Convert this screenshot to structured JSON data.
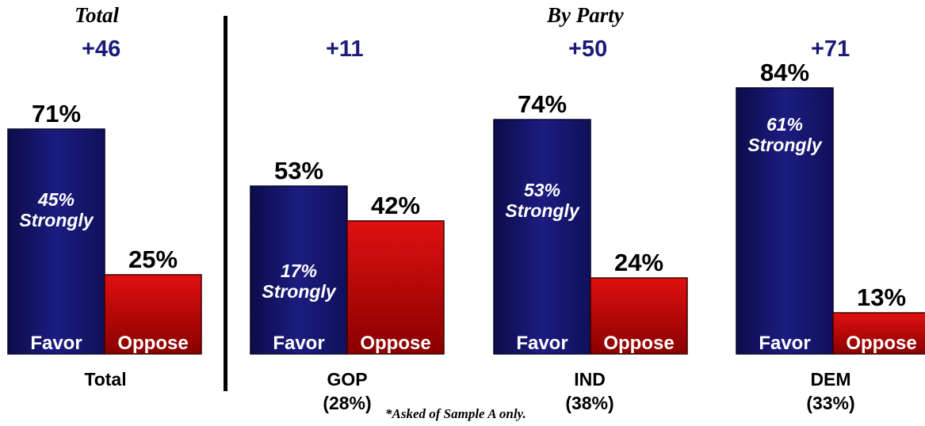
{
  "section_titles": {
    "total": "Total",
    "by_party": "By Party"
  },
  "footnote": "*Asked of Sample A only.",
  "colors": {
    "favor": "#1c1c80",
    "favor_dark": "#0c0c4a",
    "oppose": "#c80000",
    "oppose_dark": "#7a0000",
    "margin_text": "#1a1a7a"
  },
  "chart_data": {
    "type": "bar",
    "categories": [
      "Total",
      "GOP",
      "IND",
      "DEM"
    ],
    "category_sublabels": [
      "",
      "(28%)",
      "(38%)",
      "(33%)"
    ],
    "margins": [
      "+46",
      "+11",
      "+50",
      "+71"
    ],
    "series": [
      {
        "name": "Favor",
        "values": [
          71,
          53,
          74,
          84
        ],
        "labels": [
          "71%",
          "53%",
          "74%",
          "84%"
        ],
        "strongly": [
          "45%",
          "17%",
          "53%",
          "61%"
        ],
        "strongly_suffix": "Strongly"
      },
      {
        "name": "Oppose",
        "values": [
          25,
          42,
          24,
          13
        ],
        "labels": [
          "25%",
          "42%",
          "24%",
          "13%"
        ]
      }
    ],
    "ylim": [
      0,
      100
    ]
  }
}
